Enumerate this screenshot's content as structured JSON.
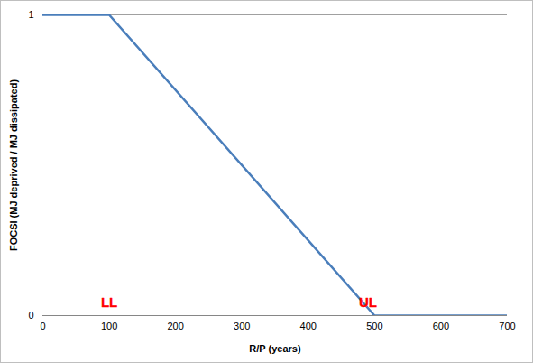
{
  "chart_data": {
    "type": "line",
    "x_label": "R/P (years)",
    "y_label": "FOCSI (MJ deprived / MJ dissipated)",
    "x": [
      0,
      100,
      500,
      700
    ],
    "values": [
      1,
      1,
      0,
      0
    ],
    "color": "#4a7ebb",
    "xlim": [
      0,
      700
    ],
    "xticks": [
      0,
      100,
      200,
      300,
      400,
      500,
      600,
      700
    ],
    "ylim": [
      0,
      1
    ],
    "yticks": [
      0,
      1
    ],
    "grid": true,
    "annotations": [
      {
        "text": "LL",
        "x": 100,
        "y": 0.03,
        "color": "#ff0000"
      },
      {
        "text": "UL",
        "x": 490,
        "y": 0.03,
        "color": "#ff0000"
      }
    ]
  }
}
